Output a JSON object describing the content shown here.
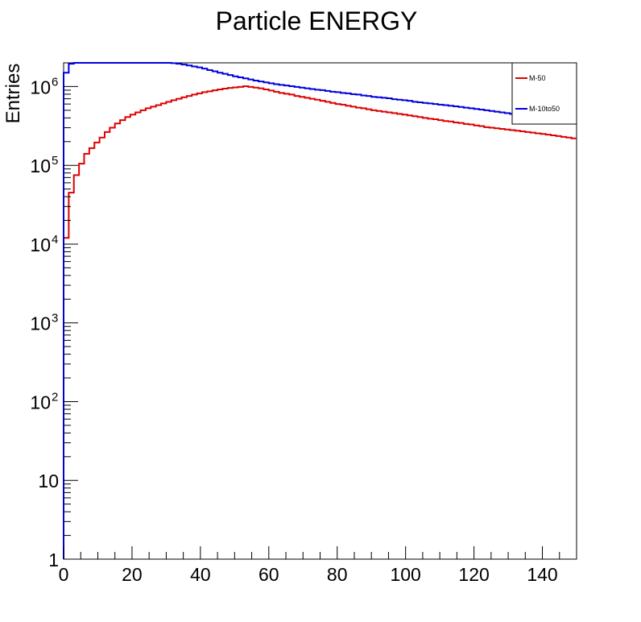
{
  "chart_data": {
    "type": "line",
    "title": "Particle ENERGY",
    "xlabel": "",
    "ylabel": "Entries",
    "xlim": [
      0,
      150
    ],
    "ylim": [
      1,
      2000000
    ],
    "y_scale": "log",
    "x_ticks": [
      "0",
      "20",
      "40",
      "60",
      "80",
      "100",
      "120",
      "140"
    ],
    "y_ticks": [
      {
        "value": 1,
        "base": "1",
        "exp": ""
      },
      {
        "value": 10,
        "base": "10",
        "exp": ""
      },
      {
        "value": 100,
        "base": "10",
        "exp": "2"
      },
      {
        "value": 1000,
        "base": "10",
        "exp": "3"
      },
      {
        "value": 10000,
        "base": "10",
        "exp": "4"
      },
      {
        "value": 100000,
        "base": "10",
        "exp": "5"
      },
      {
        "value": 1000000,
        "base": "10",
        "exp": "6"
      }
    ],
    "grid": false,
    "legend_position": "top-right",
    "bin_width": 1.5,
    "series": [
      {
        "name": "M-50",
        "color": "#dd0000",
        "values": [
          12000,
          45000,
          75000,
          105000,
          140000,
          165000,
          195000,
          225000,
          265000,
          300000,
          340000,
          375000,
          410000,
          440000,
          470000,
          500000,
          530000,
          555000,
          580000,
          610000,
          640000,
          670000,
          700000,
          730000,
          760000,
          790000,
          820000,
          850000,
          870000,
          895000,
          920000,
          940000,
          960000,
          975000,
          990000,
          1010000,
          990000,
          970000,
          950000,
          920000,
          890000,
          860000,
          830000,
          810000,
          790000,
          760000,
          740000,
          720000,
          700000,
          680000,
          660000,
          640000,
          620000,
          600000,
          590000,
          570000,
          555000,
          540000,
          530000,
          515000,
          500000,
          490000,
          480000,
          470000,
          460000,
          450000,
          440000,
          430000,
          420000,
          410000,
          400000,
          390000,
          385000,
          375000,
          365000,
          360000,
          350000,
          345000,
          335000,
          330000,
          320000,
          315000,
          305000,
          300000,
          295000,
          290000,
          285000,
          280000,
          275000,
          270000,
          265000,
          260000,
          255000,
          250000,
          245000,
          240000,
          235000,
          230000,
          225000,
          220000
        ]
      },
      {
        "name": "M-10to50",
        "color": "#0000dd",
        "values": [
          1500000,
          1950000,
          2000000,
          2000000,
          2000000,
          2000000,
          2000000,
          2000000,
          2000000,
          2000000,
          2000000,
          2000000,
          2000000,
          2000000,
          2000000,
          2000000,
          2000000,
          2000000,
          2000000,
          2000000,
          2000000,
          1980000,
          1950000,
          1900000,
          1850000,
          1800000,
          1750000,
          1690000,
          1620000,
          1560000,
          1500000,
          1450000,
          1400000,
          1350000,
          1310000,
          1270000,
          1230000,
          1190000,
          1160000,
          1130000,
          1100000,
          1070000,
          1050000,
          1030000,
          1010000,
          990000,
          970000,
          950000,
          930000,
          910000,
          900000,
          880000,
          860000,
          850000,
          830000,
          820000,
          800000,
          790000,
          770000,
          760000,
          740000,
          730000,
          720000,
          710000,
          690000,
          680000,
          670000,
          660000,
          640000,
          630000,
          620000,
          610000,
          600000,
          590000,
          580000,
          570000,
          560000,
          550000,
          540000,
          530000,
          520000,
          510000,
          500000,
          490000,
          480000,
          470000,
          460000,
          450000,
          440000,
          430000,
          420000,
          410000,
          400000,
          395000,
          390000,
          385000,
          380000,
          375000,
          370000,
          365000
        ]
      }
    ]
  }
}
